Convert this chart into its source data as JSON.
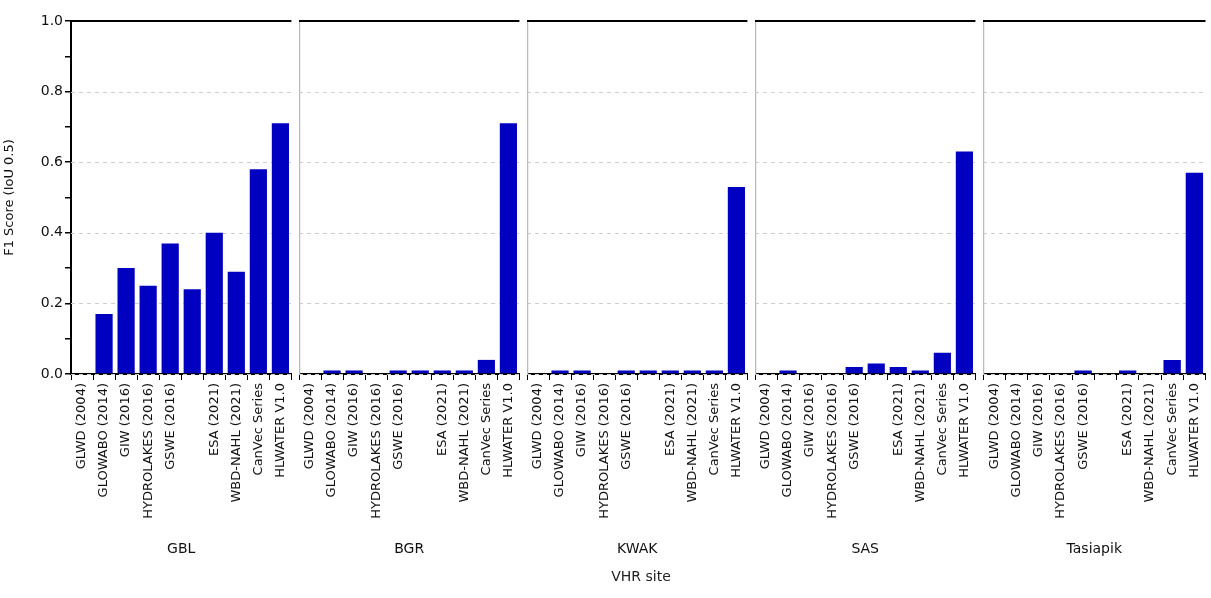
{
  "chart_data": [
    {
      "type": "bar",
      "xlabel": "GBL",
      "ylabel": "F1 Score (IoU 0.5)",
      "annotations": [
        "VHR site"
      ],
      "categories": [
        "GLWD (2004)",
        "GLOWABO (2014)",
        "GIW (2016)",
        "HYDROLAKES (2016)",
        "GSWE (2016)",
        null,
        "ESA (2021)",
        "WBD-NAHL (2021)",
        "CanVec Series",
        "HLWATER V1.0"
      ],
      "values": [
        0,
        0.17,
        0.3,
        0.25,
        0.37,
        0.24,
        0.4,
        0.29,
        0.58,
        0.71
      ],
      "color": "#0000c0",
      "ylim": [
        0,
        1
      ],
      "yticks": [
        {
          "value": 0,
          "label": "0.0"
        },
        {
          "value": 0.1,
          "label": null
        },
        {
          "value": 0.2,
          "label": "0.2"
        },
        {
          "value": 0.3,
          "label": null
        },
        {
          "value": 0.4,
          "label": "0.4"
        },
        {
          "value": 0.5,
          "label": null
        },
        {
          "value": 0.6,
          "label": "0.6"
        },
        {
          "value": 0.7,
          "label": null
        },
        {
          "value": 0.8,
          "label": "0.8"
        },
        {
          "value": 0.9,
          "label": null
        },
        {
          "value": 1,
          "label": "1.0"
        }
      ],
      "grid": "y"
    },
    {
      "type": "bar",
      "xlabel": "BGR",
      "tick_labels": "x",
      "categories": [
        "GLWD (2004)",
        "GLOWABO (2014)",
        "GIW (2016)",
        "HYDROLAKES (2016)",
        "GSWE (2016)",
        null,
        "ESA (2021)",
        "WBD-NAHL (2021)",
        "CanVec Series",
        "HLWATER V1.0"
      ],
      "values": [
        0,
        0.01,
        0.01,
        0,
        0.01,
        0.01,
        0.01,
        0.01,
        0.04,
        0.71
      ],
      "color": "#0000c0",
      "ylim": [
        0,
        1
      ],
      "yticks": [
        0,
        0.2,
        0.4,
        0.6,
        0.8,
        1
      ],
      "grid": "y"
    },
    {
      "type": "bar",
      "xlabel": "KWAK",
      "tick_labels": "x",
      "categories": [
        "GLWD (2004)",
        "GLOWABO (2014)",
        "GIW (2016)",
        "HYDROLAKES (2016)",
        "GSWE (2016)",
        null,
        "ESA (2021)",
        "WBD-NAHL (2021)",
        "CanVec Series",
        "HLWATER V1.0"
      ],
      "values": [
        0,
        0.01,
        0.01,
        0,
        0.01,
        0.01,
        0.01,
        0.01,
        0.01,
        0.53
      ],
      "color": "#0000c0",
      "ylim": [
        0,
        1
      ],
      "yticks": [
        0,
        0.2,
        0.4,
        0.6,
        0.8,
        1
      ],
      "grid": "y"
    },
    {
      "type": "bar",
      "xlabel": "SAS",
      "tick_labels": "x",
      "categories": [
        "GLWD (2004)",
        "GLOWABO (2014)",
        "GIW (2016)",
        "HYDROLAKES (2016)",
        "GSWE (2016)",
        null,
        "ESA (2021)",
        "WBD-NAHL (2021)",
        "CanVec Series",
        "HLWATER V1.0"
      ],
      "values": [
        0,
        0.01,
        0,
        0,
        0.02,
        0.03,
        0.02,
        0.01,
        0.06,
        0.63
      ],
      "color": "#0000c0",
      "ylim": [
        0,
        1
      ],
      "yticks": [
        0,
        0.2,
        0.4,
        0.6,
        0.8,
        1
      ],
      "grid": "y"
    },
    {
      "type": "bar",
      "xlabel": "Tasiapik",
      "tick_labels": "x",
      "categories": [
        "GLWD (2004)",
        "GLOWABO (2014)",
        "GIW (2016)",
        "HYDROLAKES (2016)",
        "GSWE (2016)",
        null,
        "ESA (2021)",
        "WBD-NAHL (2021)",
        "CanVec Series",
        "HLWATER V1.0"
      ],
      "values": [
        0,
        0,
        0,
        0,
        0.01,
        0,
        0.01,
        0,
        0.04,
        0.57
      ],
      "color": "#0000c0",
      "ylim": [
        0,
        1
      ],
      "yticks": [
        0,
        0.2,
        0.4,
        0.6,
        0.8,
        1
      ],
      "grid": "y"
    }
  ]
}
